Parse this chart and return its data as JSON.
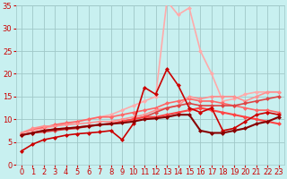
{
  "background_color": "#c8f0f0",
  "grid_color": "#a0c8c8",
  "xlim": [
    -0.5,
    23.5
  ],
  "ylim": [
    0,
    35
  ],
  "xticks": [
    0,
    1,
    2,
    3,
    4,
    5,
    6,
    7,
    8,
    9,
    10,
    11,
    12,
    13,
    14,
    15,
    16,
    17,
    18,
    19,
    20,
    21,
    22,
    23
  ],
  "yticks": [
    0,
    5,
    10,
    15,
    20,
    25,
    30,
    35
  ],
  "lines": [
    {
      "x": [
        0,
        1,
        2,
        3,
        4,
        5,
        6,
        7,
        8,
        9,
        10,
        11,
        12,
        13,
        14,
        15,
        16,
        17,
        18,
        19,
        20,
        21,
        22,
        23
      ],
      "y": [
        3.0,
        4.5,
        5.5,
        6.0,
        6.5,
        6.8,
        7.0,
        7.2,
        7.5,
        5.5,
        9.0,
        17.0,
        15.5,
        21.0,
        17.5,
        12.5,
        11.5,
        12.5,
        7.5,
        8.0,
        9.5,
        11.0,
        11.5,
        11.0
      ],
      "color": "#cc0000",
      "lw": 1.2,
      "marker": "D",
      "ms": 2.5,
      "zorder": 5
    },
    {
      "x": [
        0,
        1,
        2,
        3,
        4,
        5,
        6,
        7,
        8,
        9,
        10,
        11,
        12,
        13,
        14,
        15,
        16,
        17,
        18,
        19,
        20,
        21,
        22,
        23
      ],
      "y": [
        7.0,
        8.0,
        8.5,
        8.5,
        8.8,
        9.0,
        9.2,
        9.5,
        9.5,
        10.0,
        10.5,
        11.0,
        12.0,
        12.5,
        13.0,
        15.0,
        14.5,
        15.0,
        15.0,
        15.0,
        14.0,
        15.0,
        16.0,
        16.0
      ],
      "color": "#ff9090",
      "lw": 1.2,
      "marker": "D",
      "ms": 2.5,
      "zorder": 4
    },
    {
      "x": [
        0,
        1,
        2,
        3,
        4,
        5,
        6,
        7,
        8,
        9,
        10,
        11,
        12,
        13,
        14,
        15,
        16,
        17,
        18,
        19,
        20,
        21,
        22,
        23
      ],
      "y": [
        7.0,
        7.5,
        8.0,
        8.5,
        9.0,
        9.5,
        10.0,
        10.5,
        11.0,
        12.0,
        13.0,
        14.0,
        15.0,
        36.0,
        33.0,
        34.5,
        25.0,
        20.0,
        14.0,
        14.5,
        15.5,
        16.0,
        16.0,
        16.0
      ],
      "color": "#ffaaaa",
      "lw": 1.2,
      "marker": "D",
      "ms": 2.5,
      "zorder": 3
    },
    {
      "x": [
        0,
        1,
        2,
        3,
        4,
        5,
        6,
        7,
        8,
        9,
        10,
        11,
        12,
        13,
        14,
        15,
        16,
        17,
        18,
        19,
        20,
        21,
        22,
        23
      ],
      "y": [
        6.5,
        7.0,
        7.2,
        7.5,
        7.8,
        8.0,
        8.5,
        8.8,
        9.0,
        9.5,
        10.0,
        10.5,
        11.5,
        12.5,
        13.0,
        13.5,
        13.0,
        13.0,
        13.0,
        13.0,
        13.5,
        14.0,
        14.5,
        15.0
      ],
      "color": "#dd4444",
      "lw": 1.2,
      "marker": "D",
      "ms": 2.5,
      "zorder": 4
    },
    {
      "x": [
        0,
        1,
        2,
        3,
        4,
        5,
        6,
        7,
        8,
        9,
        10,
        11,
        12,
        13,
        14,
        15,
        16,
        17,
        18,
        19,
        20,
        21,
        22,
        23
      ],
      "y": [
        7.0,
        7.8,
        8.2,
        8.8,
        9.2,
        9.5,
        10.0,
        10.5,
        10.5,
        11.0,
        11.5,
        12.0,
        12.5,
        13.5,
        14.0,
        14.5,
        14.0,
        14.0,
        13.5,
        13.0,
        12.5,
        12.0,
        12.0,
        11.5
      ],
      "color": "#ff6666",
      "lw": 1.2,
      "marker": "D",
      "ms": 2.5,
      "zorder": 3
    },
    {
      "x": [
        0,
        1,
        2,
        3,
        4,
        5,
        6,
        7,
        8,
        9,
        10,
        11,
        12,
        13,
        14,
        15,
        16,
        17,
        18,
        19,
        20,
        21,
        22,
        23
      ],
      "y": [
        6.5,
        7.0,
        7.5,
        7.8,
        8.0,
        8.2,
        8.5,
        8.8,
        9.0,
        9.5,
        10.0,
        10.5,
        10.5,
        11.0,
        11.5,
        12.0,
        12.5,
        12.0,
        11.5,
        11.0,
        10.5,
        10.0,
        9.5,
        9.0
      ],
      "color": "#ff4444",
      "lw": 1.5,
      "marker": "D",
      "ms": 2.5,
      "zorder": 4
    },
    {
      "x": [
        0,
        1,
        2,
        3,
        4,
        5,
        6,
        7,
        8,
        9,
        10,
        11,
        12,
        13,
        14,
        15,
        16,
        17,
        18,
        19,
        20,
        21,
        22,
        23
      ],
      "y": [
        6.5,
        7.0,
        7.5,
        7.8,
        8.0,
        8.2,
        8.5,
        8.8,
        9.0,
        9.2,
        9.5,
        10.0,
        10.2,
        10.5,
        11.0,
        11.0,
        7.5,
        7.0,
        7.0,
        7.5,
        8.0,
        9.0,
        9.5,
        10.5
      ],
      "color": "#880000",
      "lw": 1.5,
      "marker": "D",
      "ms": 2.5,
      "zorder": 5
    }
  ],
  "arrow_color": "#cc0000",
  "xlabel_color": "#cc0000",
  "tick_color": "#cc0000",
  "tick_fontsize": 6,
  "xlabel_fontsize": 8
}
